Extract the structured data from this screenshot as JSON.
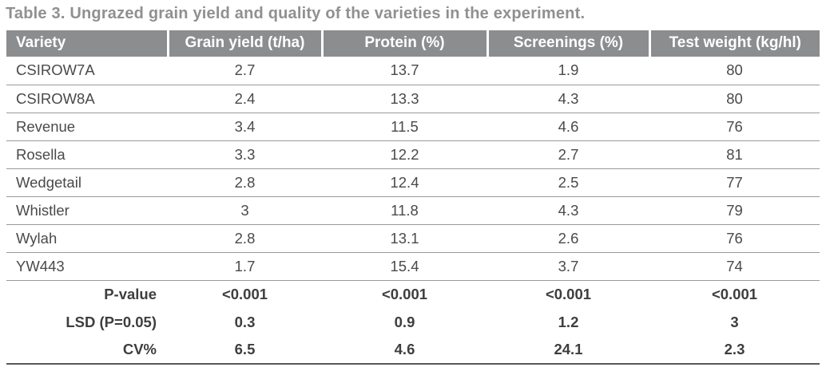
{
  "title": "Table 3. Ungrazed grain yield and quality of the varieties in the experiment.",
  "table": {
    "columns": [
      "Variety",
      "Grain yield (t/ha)",
      "Protein (%)",
      "Screenings (%)",
      "Test weight (kg/hl)"
    ],
    "rows": [
      {
        "variety": "CSIROW7A",
        "grain_yield": "2.7",
        "protein": "13.7",
        "screenings": "1.9",
        "test_weight": "80"
      },
      {
        "variety": "CSIROW8A",
        "grain_yield": "2.4",
        "protein": "13.3",
        "screenings": "4.3",
        "test_weight": "80"
      },
      {
        "variety": "Revenue",
        "grain_yield": "3.4",
        "protein": "11.5",
        "screenings": "4.6",
        "test_weight": "76"
      },
      {
        "variety": "Rosella",
        "grain_yield": "3.3",
        "protein": "12.2",
        "screenings": "2.7",
        "test_weight": "81"
      },
      {
        "variety": "Wedgetail",
        "grain_yield": "2.8",
        "protein": "12.4",
        "screenings": "2.5",
        "test_weight": "77"
      },
      {
        "variety": "Whistler",
        "grain_yield": "3",
        "protein": "11.8",
        "screenings": "4.3",
        "test_weight": "79"
      },
      {
        "variety": "Wylah",
        "grain_yield": "2.8",
        "protein": "13.1",
        "screenings": "2.6",
        "test_weight": "76"
      },
      {
        "variety": "YW443",
        "grain_yield": "1.7",
        "protein": "15.4",
        "screenings": "3.7",
        "test_weight": "74"
      }
    ],
    "stats_rows": [
      {
        "label": "P-value",
        "grain_yield": "<0.001",
        "protein": "<0.001",
        "screenings": "<0.001",
        "test_weight": "<0.001"
      },
      {
        "label": "LSD (P=0.05)",
        "grain_yield": "0.3",
        "protein": "0.9",
        "screenings": "1.2",
        "test_weight": "3"
      },
      {
        "label": "CV%",
        "grain_yield": "6.5",
        "protein": "4.6",
        "screenings": "24.1",
        "test_weight": "2.3"
      }
    ]
  },
  "colors": {
    "header_bg": "#8c8d8f",
    "header_text": "#ffffff",
    "title_text": "#8f9092",
    "body_text": "#4a4a4c",
    "row_line": "#97999c",
    "bottom_line": "#58595b"
  }
}
